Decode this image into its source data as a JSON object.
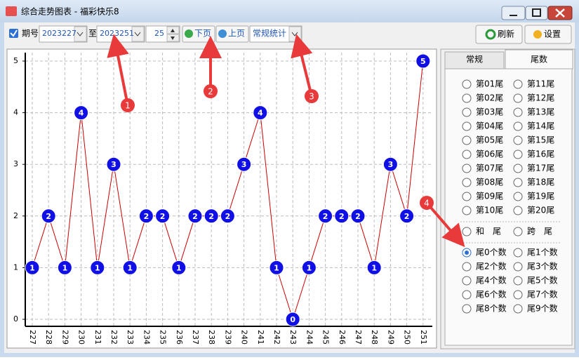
{
  "window": {
    "title": "综合走势图表 - 福彩快乐8"
  },
  "toolbar": {
    "period_label": "期号",
    "from": "2023227",
    "to_label": "至",
    "to": "2023251",
    "count": "25",
    "next": "下页",
    "prev": "上页",
    "mode": "常规统计",
    "refresh": "刷新",
    "settings": "设置"
  },
  "chart_data": {
    "type": "line",
    "categories": [
      "227",
      "228",
      "229",
      "230",
      "231",
      "232",
      "233",
      "234",
      "235",
      "236",
      "237",
      "238",
      "239",
      "240",
      "241",
      "242",
      "243",
      "244",
      "245",
      "246",
      "247",
      "248",
      "249",
      "250",
      "251"
    ],
    "values": [
      1,
      2,
      1,
      4,
      1,
      3,
      1,
      2,
      2,
      1,
      2,
      2,
      2,
      3,
      4,
      1,
      0,
      1,
      2,
      2,
      2,
      1,
      3,
      2,
      5
    ],
    "color": "#cc0000",
    "marker_color": "#1010e6",
    "ylim": [
      0,
      5
    ],
    "yticks": [
      0,
      1,
      2,
      3,
      4,
      5
    ],
    "grid": true
  },
  "annotations": [
    "1",
    "2",
    "3",
    "4"
  ],
  "panel": {
    "tabs": [
      "常规",
      "尾数"
    ],
    "selected_tab": 1,
    "option_groups": [
      [
        [
          "第01尾",
          "第11尾"
        ],
        [
          "第02尾",
          "第12尾"
        ],
        [
          "第03尾",
          "第13尾"
        ],
        [
          "第04尾",
          "第14尾"
        ],
        [
          "第05尾",
          "第15尾"
        ],
        [
          "第06尾",
          "第16尾"
        ],
        [
          "第07尾",
          "第17尾"
        ],
        [
          "第08尾",
          "第18尾"
        ],
        [
          "第09尾",
          "第19尾"
        ],
        [
          "第10尾",
          "第20尾"
        ]
      ],
      [
        [
          "和　尾",
          "跨　尾"
        ]
      ],
      [
        [
          "尾0个数",
          "尾1个数"
        ],
        [
          "尾2个数",
          "尾3个数"
        ],
        [
          "尾4个数",
          "尾5个数"
        ],
        [
          "尾6个数",
          "尾7个数"
        ],
        [
          "尾8个数",
          "尾9个数"
        ]
      ]
    ],
    "selected_option": [
      2,
      0,
      0
    ]
  }
}
